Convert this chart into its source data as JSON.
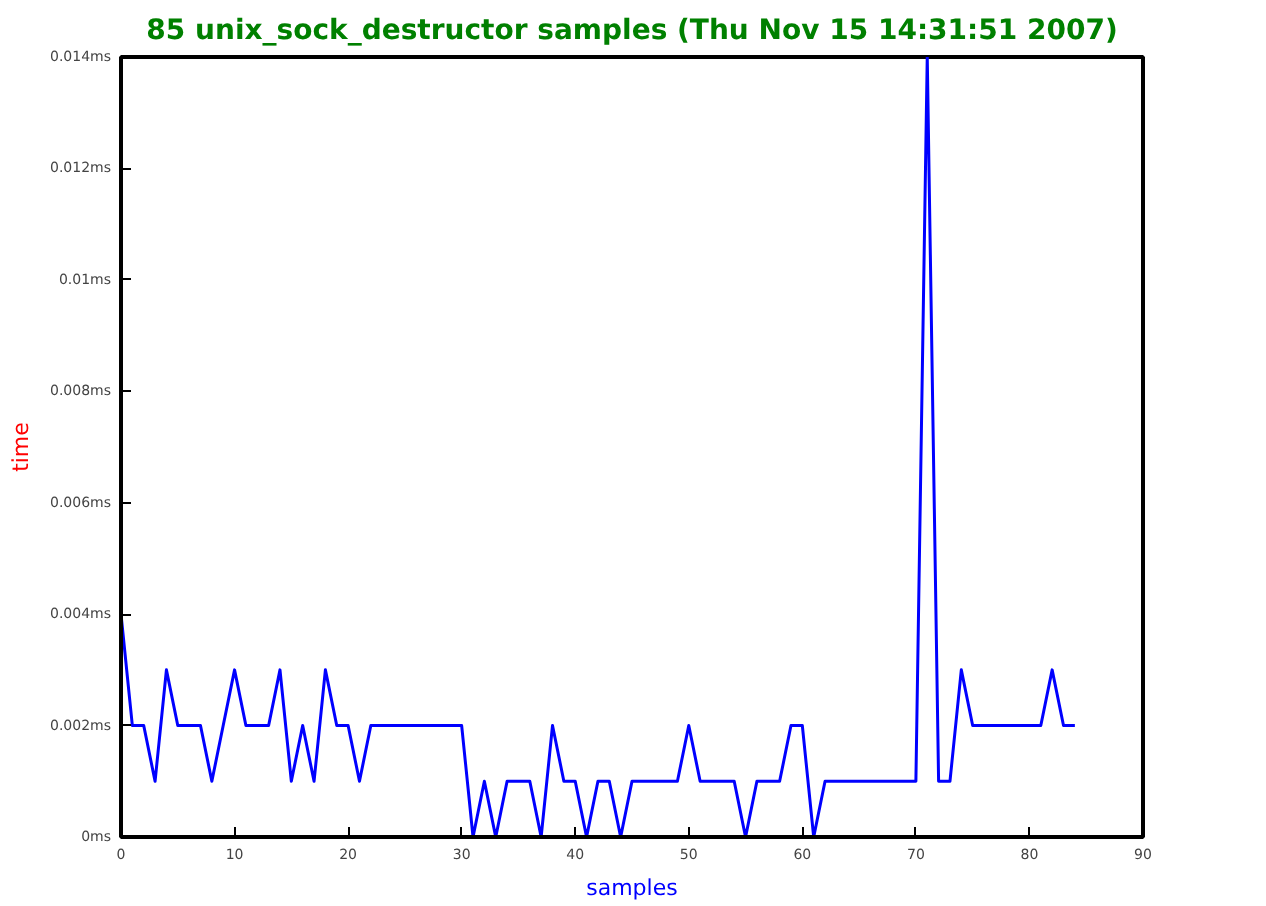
{
  "chart_data": {
    "type": "line",
    "title": "85 unix_sock_destructor samples (Thu Nov 15 14:31:51 2007)",
    "xlabel": "samples",
    "ylabel": "time",
    "x": [
      0,
      1,
      2,
      3,
      4,
      5,
      6,
      7,
      8,
      9,
      10,
      11,
      12,
      13,
      14,
      15,
      16,
      17,
      18,
      19,
      20,
      21,
      22,
      23,
      24,
      25,
      26,
      27,
      28,
      29,
      30,
      31,
      32,
      33,
      34,
      35,
      36,
      37,
      38,
      39,
      40,
      41,
      42,
      43,
      44,
      45,
      46,
      47,
      48,
      49,
      50,
      51,
      52,
      53,
      54,
      55,
      56,
      57,
      58,
      59,
      60,
      61,
      62,
      63,
      64,
      65,
      66,
      67,
      68,
      69,
      70,
      71,
      72,
      73,
      74,
      75,
      76,
      77,
      78,
      79,
      80,
      81,
      82,
      83,
      84
    ],
    "series": [
      {
        "color": "#0000ff",
        "values": [
          0.004,
          0.002,
          0.002,
          0.001,
          0.003,
          0.002,
          0.002,
          0.002,
          0.001,
          0.002,
          0.003,
          0.002,
          0.002,
          0.002,
          0.003,
          0.001,
          0.002,
          0.001,
          0.003,
          0.002,
          0.002,
          0.001,
          0.002,
          0.002,
          0.002,
          0.002,
          0.002,
          0.002,
          0.002,
          0.002,
          0.002,
          0.0,
          0.001,
          0.0,
          0.001,
          0.001,
          0.001,
          0.0,
          0.002,
          0.001,
          0.001,
          0.0,
          0.001,
          0.001,
          0.0,
          0.001,
          0.001,
          0.001,
          0.001,
          0.001,
          0.002,
          0.001,
          0.001,
          0.001,
          0.001,
          0.0,
          0.001,
          0.001,
          0.001,
          0.002,
          0.002,
          0.0,
          0.001,
          0.001,
          0.001,
          0.001,
          0.001,
          0.001,
          0.001,
          0.001,
          0.001,
          0.014,
          0.001,
          0.001,
          0.003,
          0.002,
          0.002,
          0.002,
          0.002,
          0.002,
          0.002,
          0.002,
          0.003,
          0.002,
          0.002
        ]
      }
    ],
    "xlim": [
      0,
      90
    ],
    "xticks": [
      0,
      10,
      20,
      30,
      40,
      50,
      60,
      70,
      80,
      90
    ],
    "ylim": [
      0,
      0.014
    ],
    "yticks": [
      {
        "value": 0,
        "label": "0ms"
      },
      {
        "value": 0.002,
        "label": "0.002ms"
      },
      {
        "value": 0.004,
        "label": "0.004ms"
      },
      {
        "value": 0.006,
        "label": "0.006ms"
      },
      {
        "value": 0.008,
        "label": "0.008ms"
      },
      {
        "value": 0.01,
        "label": "0.01ms"
      },
      {
        "value": 0.012,
        "label": "0.012ms"
      },
      {
        "value": 0.014,
        "label": "0.014ms"
      }
    ],
    "grid": false,
    "marker": "none",
    "line_style": "solid"
  }
}
